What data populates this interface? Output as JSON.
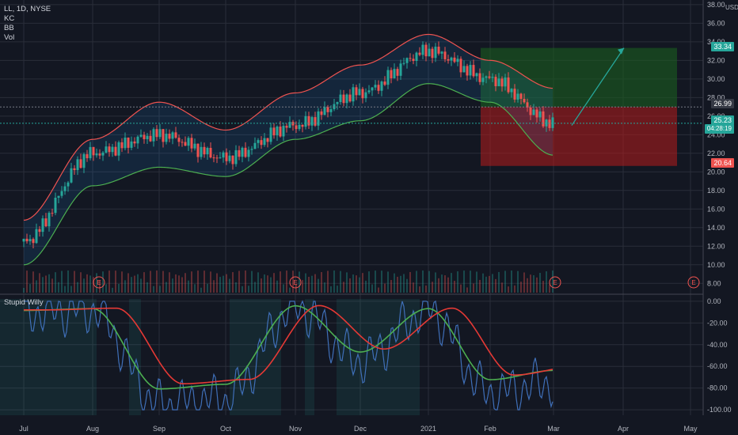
{
  "header": {
    "symbol_line": "LL, 1D, NYSE",
    "indicators": [
      "KC",
      "BB",
      "Vol"
    ],
    "currency": "USD"
  },
  "indicator_pane": {
    "name": "Stupid Willy"
  },
  "price_labels": {
    "target": "33.34",
    "entry": "26.99",
    "current": "25.23",
    "countdown": "04:28:19",
    "stop": "20.64"
  },
  "colors": {
    "background": "#131722",
    "grid": "#2a2e39",
    "up": "#26a69a",
    "down": "#ef5350",
    "kc_band": "#ef5350",
    "bb_band": "#4caf50",
    "target_zone": "#1b5e20",
    "stop_zone": "#b71c1c",
    "arrow": "#26a69a",
    "willy": "#3f6fb8",
    "fast_ma": "#4caf50",
    "slow_ma": "#e53935"
  },
  "chart_data": [
    {
      "type": "candlestick",
      "title": "LL, 1D, NYSE",
      "y_axis": {
        "ticks": [
          "8.00",
          "10.00",
          "12.00",
          "14.00",
          "16.00",
          "18.00",
          "20.00",
          "22.00",
          "24.00",
          "26.00",
          "28.00",
          "30.00",
          "32.00",
          "34.00",
          "36.00",
          "38.00"
        ],
        "label": "USD",
        "ylim": [
          7,
          38.5
        ]
      },
      "x_axis": {
        "ticks": [
          "Jul",
          "Aug",
          "Sep",
          "Oct",
          "Nov",
          "Dec",
          "2021",
          "Feb",
          "Mar",
          "Apr",
          "May"
        ]
      },
      "series": [
        {
          "name": "KC",
          "x": [
            "Jul",
            "Aug",
            "Sep",
            "Oct",
            "Nov",
            "Dec",
            "2021",
            "Feb",
            "Mar"
          ],
          "values": [
            14.8,
            23.5,
            27.5,
            24.5,
            28.5,
            31.5,
            34.8,
            32.0,
            29.0
          ]
        },
        {
          "name": "BB",
          "x": [
            "Jul",
            "Aug",
            "Sep",
            "Oct",
            "Nov",
            "Dec",
            "2021",
            "Feb",
            "Mar"
          ],
          "values": [
            10.0,
            18.5,
            20.5,
            19.5,
            23.5,
            25.5,
            29.5,
            27.5,
            21.8
          ]
        }
      ],
      "close": {
        "x": [
          "Jul",
          "Aug",
          "Sep",
          "Oct",
          "Nov",
          "Dec",
          "2021",
          "Feb",
          "Mar"
        ],
        "values": [
          12.5,
          22.0,
          24.0,
          21.5,
          25.0,
          28.5,
          33.0,
          30.0,
          25.23
        ]
      },
      "events": [
        "E",
        "E",
        "E",
        "E"
      ],
      "position": {
        "target": 33.34,
        "entry": 26.99,
        "stop": 20.64
      }
    },
    {
      "type": "line",
      "title": "Stupid Willy",
      "y_axis": {
        "ticks": [
          "0.00",
          "-20.00",
          "-40.00",
          "-60.00",
          "-80.00",
          "-100.00"
        ],
        "ylim": [
          -105,
          5
        ]
      },
      "series": [
        {
          "name": "Stupid Willy",
          "x": [
            "Jul",
            "Aug",
            "Sep",
            "Oct",
            "Nov",
            "Dec",
            "2021",
            "Feb",
            "Mar"
          ],
          "values": [
            -10,
            -8,
            -95,
            -90,
            -5,
            -55,
            -8,
            -85,
            -75
          ]
        }
      ]
    }
  ]
}
